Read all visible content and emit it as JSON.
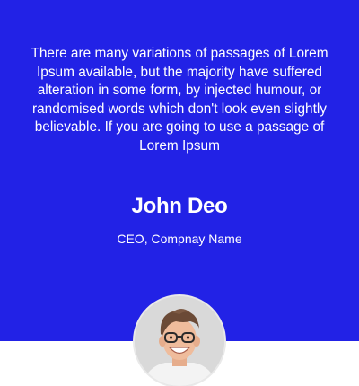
{
  "testimonial": {
    "quote": "There are many variations of passages of Lorem Ipsum available, but the majority have suffered alteration in some form, by injected humour, or randomised words which don't look even slightly believable. If you are going to use a passage of Lorem Ipsum",
    "name": "John Deo",
    "role": "CEO, Compnay Name",
    "avatar_icon": "person-avatar-photo"
  },
  "colors": {
    "panel_background": "#2222e6",
    "text": "#ffffff",
    "page_background": "#ffffff"
  }
}
